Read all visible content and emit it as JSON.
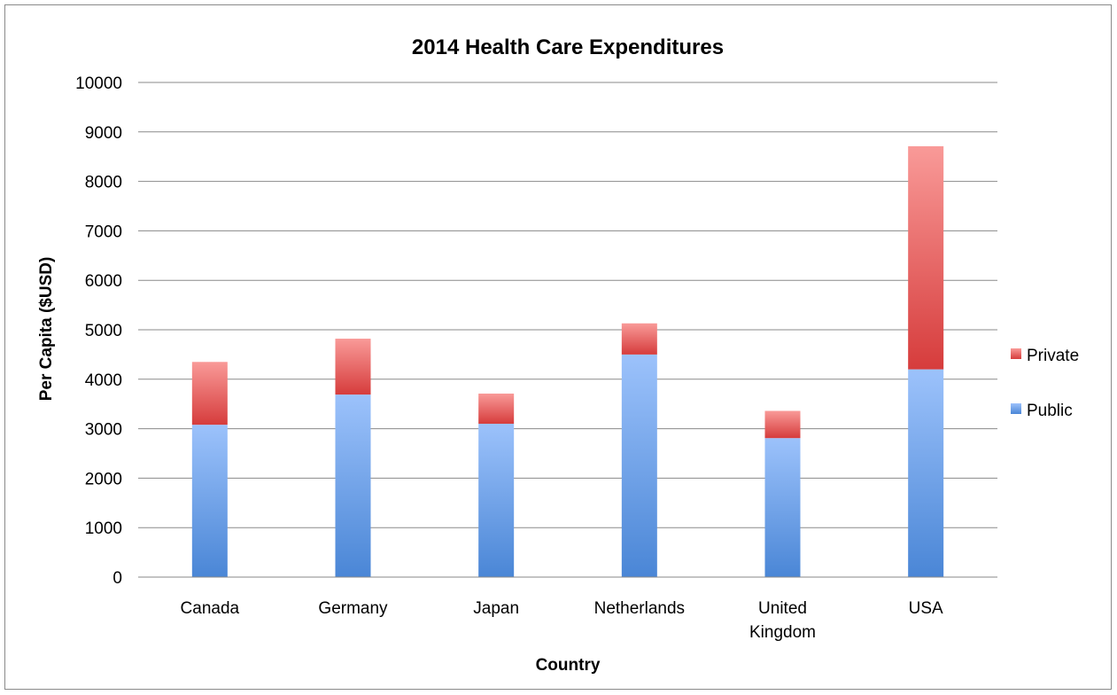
{
  "chart_data": {
    "type": "bar",
    "stacked": true,
    "title": "2014 Health Care Expenditures",
    "xlabel": "Country",
    "ylabel": "Per Capita ($USD)",
    "ylim": [
      0,
      10000
    ],
    "yticks": [
      0,
      1000,
      2000,
      3000,
      4000,
      5000,
      6000,
      7000,
      8000,
      9000,
      10000
    ],
    "categories": [
      [
        "Canada"
      ],
      [
        "Germany"
      ],
      [
        "Japan"
      ],
      [
        "Netherlands"
      ],
      [
        "United",
        "Kingdom"
      ],
      [
        "USA"
      ]
    ],
    "series": [
      {
        "name": "Public",
        "values": [
          3080,
          3690,
          3100,
          4500,
          2810,
          4200
        ],
        "color": "#4a86d6",
        "color_light": "#9cc2fb"
      },
      {
        "name": "Private",
        "values": [
          1270,
          1130,
          610,
          630,
          550,
          4510
        ],
        "color": "#d63c3c",
        "color_light": "#f99a98"
      }
    ],
    "grid": true,
    "legend_position": "right"
  }
}
